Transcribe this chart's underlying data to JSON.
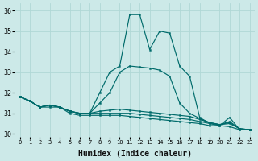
{
  "xlabel": "Humidex (Indice chaleur)",
  "bg_color": "#cce9e8",
  "grid_color": "#b0d8d6",
  "line_color": "#006b6b",
  "ylim": [
    29.85,
    36.35
  ],
  "yticks": [
    30,
    31,
    32,
    33,
    34,
    35,
    36
  ],
  "xlim": [
    -0.5,
    23.5
  ],
  "series": [
    [
      31.8,
      31.6,
      31.3,
      31.3,
      31.3,
      31.0,
      30.9,
      30.9,
      30.9,
      30.9,
      30.9,
      30.85,
      30.8,
      30.75,
      30.7,
      30.65,
      30.6,
      30.55,
      30.5,
      30.4,
      30.4,
      30.35,
      30.2,
      30.2
    ],
    [
      31.8,
      31.6,
      31.3,
      31.4,
      31.3,
      31.1,
      31.0,
      31.0,
      31.0,
      31.0,
      31.0,
      31.0,
      30.95,
      30.9,
      30.85,
      30.8,
      30.75,
      30.7,
      30.6,
      30.5,
      30.45,
      30.5,
      30.25,
      30.2
    ],
    [
      31.8,
      31.6,
      31.3,
      31.4,
      31.3,
      31.1,
      31.0,
      31.0,
      31.1,
      31.15,
      31.2,
      31.15,
      31.1,
      31.05,
      31.0,
      30.95,
      30.9,
      30.85,
      30.7,
      30.55,
      30.45,
      30.55,
      30.25,
      30.2
    ],
    [
      31.8,
      31.6,
      31.3,
      31.4,
      31.3,
      31.1,
      31.0,
      31.0,
      31.5,
      32.0,
      33.0,
      33.3,
      33.25,
      33.2,
      33.1,
      32.8,
      31.5,
      31.0,
      30.75,
      30.55,
      30.45,
      30.6,
      30.25,
      30.2
    ],
    [
      31.8,
      31.6,
      31.3,
      31.4,
      31.3,
      31.1,
      31.0,
      31.0,
      32.0,
      33.0,
      33.3,
      35.8,
      35.8,
      34.1,
      35.0,
      34.9,
      33.3,
      32.8,
      30.8,
      30.5,
      30.4,
      30.8,
      30.2,
      30.2
    ]
  ]
}
